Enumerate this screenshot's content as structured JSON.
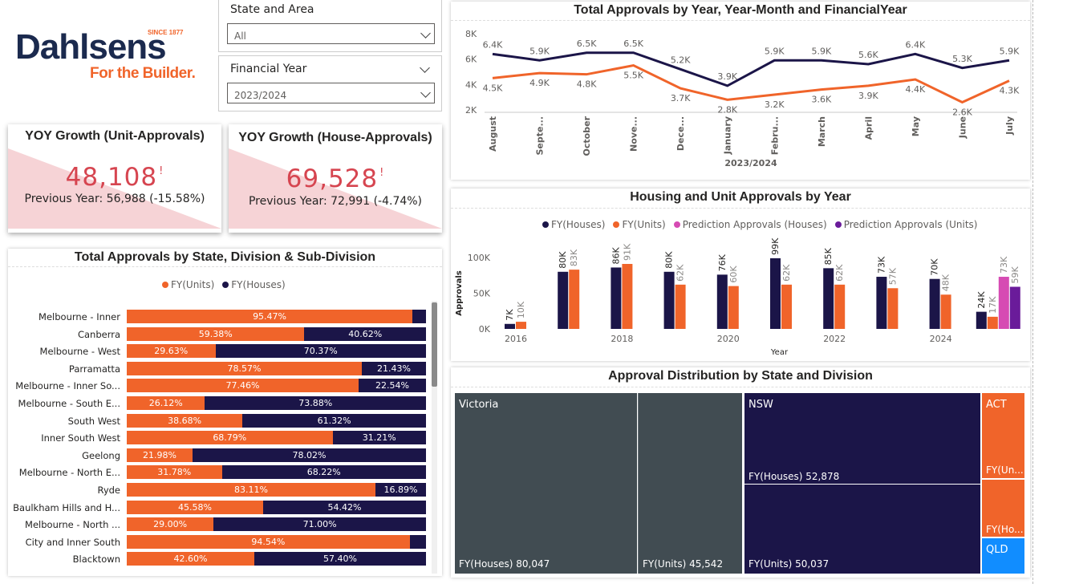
{
  "brand": {
    "since": "SINCE 1877",
    "name": "Dahlsens",
    "tagline": "For the Builder.",
    "navy": "#1b2a4e",
    "orange": "#f0642a"
  },
  "slicers": {
    "state": {
      "label": "State and Area",
      "value": "All"
    },
    "fy": {
      "label": "Financial Year",
      "value": "2023/2024"
    }
  },
  "kpis": [
    {
      "title": "YOY Growth (Unit-Approvals)",
      "value": "48,108",
      "flag": "!",
      "prev": "Previous Year: 56,988 (-15.58%)"
    },
    {
      "title": "YOY Growth (House-Approvals)",
      "value": "69,528",
      "flag": "!",
      "prev": "Previous Year: 72,991 (-4.74%)"
    }
  ],
  "colors": {
    "houses": "#1b1548",
    "units": "#f0642a",
    "pred_houses": "#d64bb3",
    "pred_units": "#6a1b9a",
    "victoria": "#414c52",
    "act": "#f0642a",
    "qld": "#118dff"
  },
  "charts": {
    "state_bars": {
      "title": "Total Approvals by State, Division & Sub-Division",
      "legend": [
        "FY(Units)",
        "FY(Houses)"
      ]
    },
    "monthly": {
      "title": "Total Approvals by Year, Year-Month and FinancialYear",
      "xlabel": "2023/2024"
    },
    "yearly": {
      "title": "Housing and Unit Approvals by Year",
      "legend": [
        "FY(Houses)",
        "FY(Units)",
        "Prediction Approvals (Houses)",
        "Prediction Approvals (Units)"
      ],
      "xlabel": "Year",
      "ylabel": "Approvals"
    },
    "treemap": {
      "title": "Approval Distribution by State and Division",
      "victoria": "Victoria",
      "vic_houses": "FY(Houses) 80,047",
      "vic_units": "FY(Units) 45,542",
      "nsw": "NSW",
      "nsw_houses": "FY(Houses) 52,878",
      "nsw_units": "FY(Units) 50,037",
      "act": "ACT",
      "act_units": "FY(Un...",
      "act_houses": "FY(Ho...",
      "qld": "QLD"
    }
  },
  "chart_data": [
    {
      "type": "bar",
      "orientation": "horizontal-stacked-100",
      "title": "Total Approvals by State, Division & Sub-Division",
      "categories": [
        "Melbourne - Inner",
        "Canberra",
        "Melbourne - West",
        "Parramatta",
        "Melbourne - Inner So...",
        "Melbourne - South E...",
        "South West",
        "Inner South West",
        "Geelong",
        "Melbourne - North E...",
        "Ryde",
        "Baulkham Hills and H...",
        "Melbourne - North ...",
        "City and Inner South",
        "Blacktown"
      ],
      "series": [
        {
          "name": "FY(Units)",
          "values": [
            95.47,
            59.38,
            29.63,
            78.57,
            77.46,
            26.12,
            38.68,
            68.79,
            21.98,
            31.78,
            83.11,
            45.58,
            29.0,
            94.54,
            42.6
          ],
          "labels": [
            "95.47%",
            "59.38%",
            "29.63%",
            "78.57%",
            "77.46%",
            "26.12%",
            "38.68%",
            "68.79%",
            "21.98%",
            "31.78%",
            "83.11%",
            "45.58%",
            "29.00%",
            "94.54%",
            "42.60%"
          ]
        },
        {
          "name": "FY(Houses)",
          "values": [
            4.53,
            40.62,
            70.37,
            21.43,
            22.54,
            73.88,
            61.32,
            31.21,
            78.02,
            68.22,
            16.89,
            54.42,
            71.0,
            5.46,
            57.4
          ],
          "labels": [
            "",
            "40.62%",
            "70.37%",
            "21.43%",
            "22.54%",
            "73.88%",
            "61.32%",
            "31.21%",
            "78.02%",
            "68.22%",
            "16.89%",
            "54.42%",
            "71.00%",
            "",
            "57.40%"
          ]
        }
      ]
    },
    {
      "type": "line",
      "title": "Total Approvals by Year, Year-Month and FinancialYear",
      "categories": [
        "August",
        "Septe...",
        "October",
        "Nove...",
        "Dece...",
        "January",
        "Febru...",
        "March",
        "April",
        "May",
        "June",
        "July"
      ],
      "xlabel": "2023/2024",
      "ylim": [
        2000,
        8000
      ],
      "yticks": [
        "2K",
        "4K",
        "6K",
        "8K"
      ],
      "series": [
        {
          "name": "FY(Houses)",
          "values": [
            6400,
            5900,
            6500,
            6500,
            5200,
            3900,
            5900,
            5900,
            5600,
            6400,
            5300,
            5900
          ],
          "labels": [
            "6.4K",
            "5.9K",
            "6.5K",
            "6.5K",
            "5.2K",
            "3.9K",
            "5.9K",
            "5.9K",
            "5.6K",
            "6.4K",
            "5.3K",
            "5.9K"
          ]
        },
        {
          "name": "FY(Units)",
          "values": [
            4500,
            4900,
            4800,
            5500,
            3700,
            2800,
            3200,
            3600,
            3900,
            4400,
            2600,
            4300
          ],
          "labels": [
            "4.5K",
            "4.9K",
            "4.8K",
            "5.5K",
            "3.7K",
            "2.8K",
            "3.2K",
            "3.6K",
            "3.9K",
            "4.4K",
            "2.6K",
            "4.3K"
          ]
        }
      ]
    },
    {
      "type": "bar",
      "title": "Housing and Unit Approvals by Year",
      "categories": [
        "2016",
        "2017",
        "2018",
        "2019",
        "2020",
        "2021",
        "2022",
        "2023",
        "2024",
        "2025"
      ],
      "xticks": [
        "2016",
        "2018",
        "2020",
        "2022",
        "2024"
      ],
      "xlabel": "Year",
      "ylabel": "Approvals",
      "ylim": [
        0,
        100000
      ],
      "yticks": [
        "0K",
        "50K",
        "100K"
      ],
      "series": [
        {
          "name": "FY(Houses)",
          "values": [
            7000,
            80000,
            86000,
            80000,
            76000,
            99000,
            85000,
            73000,
            70000,
            24000
          ],
          "labels": [
            "7K",
            "80K",
            "86K",
            "80K",
            "76K",
            "99K",
            "85K",
            "73K",
            "70K",
            "24K"
          ]
        },
        {
          "name": "FY(Units)",
          "values": [
            10000,
            83000,
            91000,
            62000,
            60000,
            62000,
            62000,
            57000,
            48000,
            17000
          ],
          "labels": [
            "10K",
            "83K",
            "91K",
            "62K",
            "60K",
            "62K",
            "62K",
            "57K",
            "48K",
            "17K"
          ]
        },
        {
          "name": "Prediction Approvals (Houses)",
          "values": [
            null,
            null,
            null,
            null,
            null,
            null,
            null,
            null,
            null,
            73000
          ],
          "labels": [
            "",
            "",
            "",
            "",
            "",
            "",
            "",
            "",
            "",
            "73K"
          ]
        },
        {
          "name": "Prediction Approvals (Units)",
          "values": [
            null,
            null,
            null,
            null,
            null,
            null,
            null,
            null,
            null,
            59000
          ],
          "labels": [
            "",
            "",
            "",
            "",
            "",
            "",
            "",
            "",
            "",
            "59K"
          ]
        }
      ]
    }
  ]
}
